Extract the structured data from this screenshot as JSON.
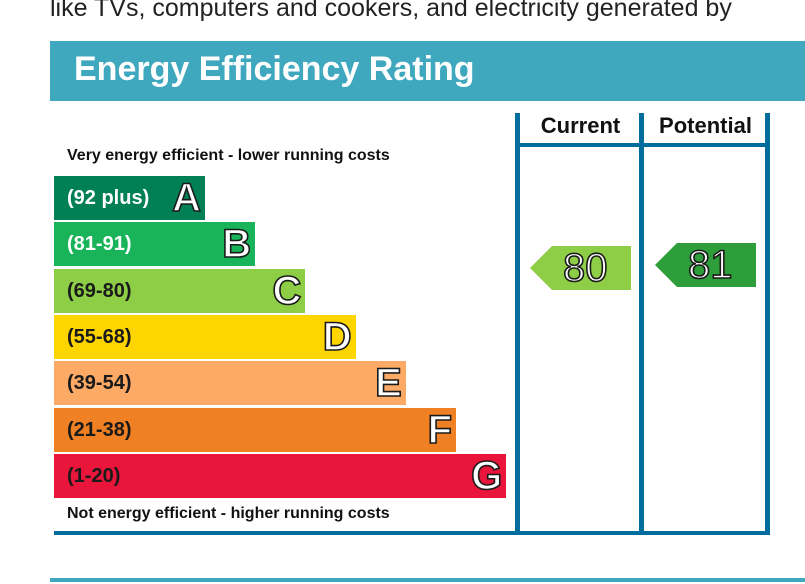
{
  "intro_text": "like TVs, computers and cookers, and electricity generated by",
  "title": "Energy Efficiency Rating",
  "columns": {
    "current": "Current",
    "potential": "Potential"
  },
  "top_note": "Very energy efficient - lower running costs",
  "bottom_note": "Not energy efficient - higher running costs",
  "bands": [
    {
      "range": "(92 plus)",
      "letter": "A",
      "color": "#008054",
      "text_color": "#ffffff"
    },
    {
      "range": "(81-91)",
      "letter": "B",
      "color": "#19b459",
      "text_color": "#ffffff"
    },
    {
      "range": "(69-80)",
      "letter": "C",
      "color": "#8dce46",
      "text_color": "#1a1a1a"
    },
    {
      "range": "(55-68)",
      "letter": "D",
      "color": "#ffd500",
      "text_color": "#1a1a1a"
    },
    {
      "range": "(39-54)",
      "letter": "E",
      "color": "#fcaa65",
      "text_color": "#1a1a1a"
    },
    {
      "range": "(21-38)",
      "letter": "F",
      "color": "#ef8023",
      "text_color": "#1a1a1a"
    },
    {
      "range": "(1-20)",
      "letter": "G",
      "color": "#e9153b",
      "text_color": "#1a1a1a"
    }
  ],
  "ratings": {
    "current": {
      "value": "80",
      "band": "C",
      "color": "#8dce46"
    },
    "potential": {
      "value": "81",
      "band": "B",
      "color": "#2e9e3a"
    }
  },
  "colors": {
    "header": "#3fa8bf",
    "frame": "#006d9c"
  }
}
